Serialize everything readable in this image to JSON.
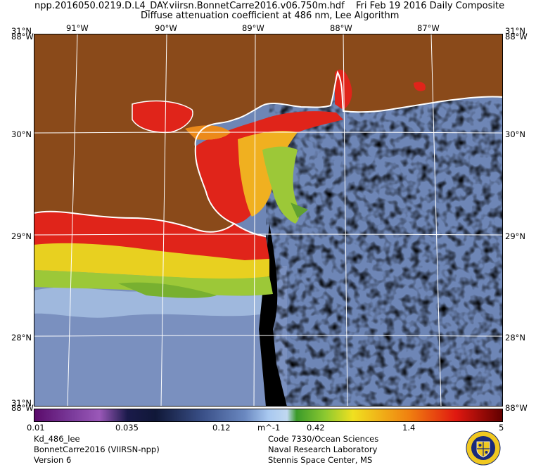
{
  "header": {
    "filename": "npp.2016050.0219.D.L4_DAY.viirsn.BonnetCarre2016.v06.750m.hdf",
    "date": "Fri Feb 19 2016 Daily Composite",
    "title": "Diffuse attenuation coefficient at 486 nm, Lee Algorithm"
  },
  "axes": {
    "top_left": "31°N",
    "top_left2": "88°W",
    "top_right": "31°N",
    "top_right2": "88°W",
    "bottom_left": "88°W",
    "bottom_left2": "31°N",
    "bottom_right": "88°W",
    "lon_labels": [
      "91°W",
      "90°W",
      "89°W",
      "88°W",
      "87°W"
    ],
    "lat_labels": [
      "30°N",
      "29°N",
      "28°N"
    ]
  },
  "colorbar": {
    "ticks": [
      "0.01",
      "0.035",
      "0.12",
      "m^-1",
      "0.42",
      "1.4",
      "5"
    ]
  },
  "footer": {
    "left": [
      "Kd_486_lee",
      "BonnetCarre2016 (VIIRSN-npp)",
      "Version 6"
    ],
    "right": [
      "Code 7330/Ocean Sciences",
      "Naval Research Laboratory",
      "Stennis Space Center, MS"
    ]
  },
  "colors": {
    "land": "#8a4a1a",
    "ocean": "#6c84b4",
    "no_data": "#000000",
    "high": "#e0201a",
    "mid": "#f0d020",
    "green": "#80c030"
  }
}
